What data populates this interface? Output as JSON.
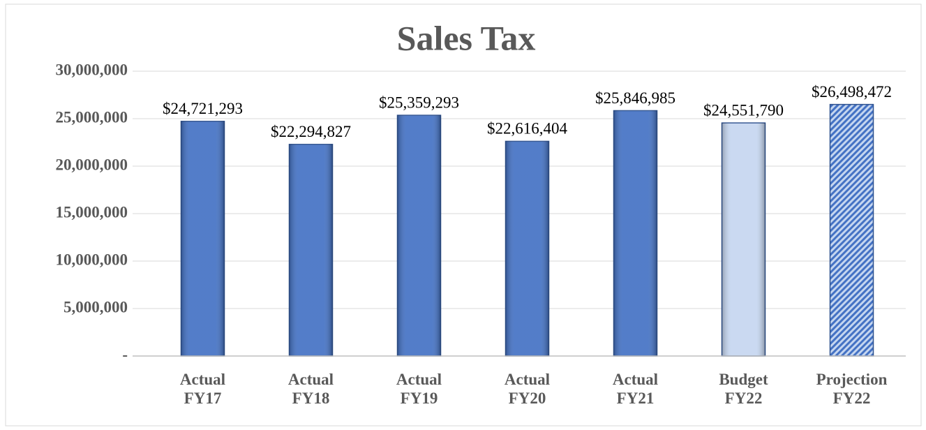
{
  "chart_data": {
    "type": "bar",
    "title": "Sales Tax",
    "categories": [
      "Actual FY17",
      "Actual FY18",
      "Actual FY19",
      "Actual FY20",
      "Actual FY21",
      "Budget FY22",
      "Projection FY22"
    ],
    "values": [
      24721293,
      22294827,
      25359293,
      22616404,
      25846985,
      24551790,
      26498472
    ],
    "value_labels": [
      "$24,721,293",
      "$22,294,827",
      "$25,359,293",
      "$22,616,404",
      "$25,846,985",
      "$24,551,790",
      "$26,498,472"
    ],
    "colors": [
      "#4472c4",
      "#4472c4",
      "#4472c4",
      "#4472c4",
      "#4472c4",
      "#c5d6f0",
      "#4472c4"
    ],
    "hatched": [
      false,
      false,
      false,
      false,
      false,
      false,
      true
    ],
    "ylim": [
      0,
      30000000
    ],
    "yticks": [
      {
        "value": 0,
        "label": "-"
      },
      {
        "value": 5000000,
        "label": "5,000,000"
      },
      {
        "value": 10000000,
        "label": "10,000,000"
      },
      {
        "value": 15000000,
        "label": "15,000,000"
      },
      {
        "value": 20000000,
        "label": "20,000,000"
      },
      {
        "value": 25000000,
        "label": "25,000,000"
      },
      {
        "value": 30000000,
        "label": "30,000,000"
      }
    ],
    "grid": true
  }
}
